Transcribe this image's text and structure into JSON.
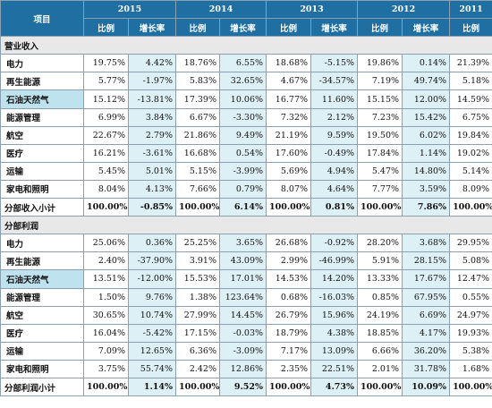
{
  "header": {
    "corner": "项目",
    "years": [
      "2015",
      "2014",
      "2013",
      "2012",
      "2011"
    ],
    "ratio_label": "比例",
    "growth_label": "增长率"
  },
  "sections": [
    {
      "title": "营业收入",
      "rows": [
        {
          "label": "电力",
          "highlight": false,
          "values": [
            "19.75%",
            "4.42%",
            "18.76%",
            "6.55%",
            "18.68%",
            "-5.15%",
            "19.86%",
            "0.14%",
            "21.39%"
          ]
        },
        {
          "label": "再生能源",
          "highlight": false,
          "values": [
            "5.77%",
            "-1.97%",
            "5.83%",
            "32.65%",
            "4.67%",
            "-34.57%",
            "7.19%",
            "49.74%",
            "5.18%"
          ]
        },
        {
          "label": "石油天然气",
          "highlight": true,
          "values": [
            "15.12%",
            "-13.81%",
            "17.39%",
            "10.06%",
            "16.77%",
            "11.60%",
            "15.15%",
            "12.00%",
            "14.59%"
          ]
        },
        {
          "label": "能源管理",
          "highlight": false,
          "values": [
            "6.99%",
            "3.84%",
            "6.67%",
            "-3.30%",
            "7.32%",
            "2.12%",
            "7.23%",
            "15.42%",
            "6.75%"
          ]
        },
        {
          "label": "航空",
          "highlight": false,
          "values": [
            "22.67%",
            "2.79%",
            "21.86%",
            "9.49%",
            "21.19%",
            "9.59%",
            "19.50%",
            "6.02%",
            "19.84%"
          ]
        },
        {
          "label": "医疗",
          "highlight": false,
          "values": [
            "16.21%",
            "-3.61%",
            "16.68%",
            "0.54%",
            "17.60%",
            "-0.49%",
            "17.84%",
            "1.14%",
            "19.02%"
          ]
        },
        {
          "label": "运输",
          "highlight": false,
          "values": [
            "5.45%",
            "5.01%",
            "5.15%",
            "-3.99%",
            "5.69%",
            "4.94%",
            "5.47%",
            "14.80%",
            "5.14%"
          ]
        },
        {
          "label": "家电和照明",
          "highlight": false,
          "values": [
            "8.04%",
            "4.13%",
            "7.66%",
            "0.79%",
            "8.07%",
            "4.64%",
            "7.77%",
            "3.59%",
            "8.09%"
          ]
        }
      ],
      "subtotal": {
        "label": "分部收入小计",
        "values": [
          "100.00%",
          "-0.85%",
          "100.00%",
          "6.14%",
          "100.00%",
          "0.81%",
          "100.00%",
          "7.86%",
          "100.00%"
        ]
      }
    },
    {
      "title": "分部利润",
      "rows": [
        {
          "label": "电力",
          "highlight": false,
          "values": [
            "25.06%",
            "0.36%",
            "25.25%",
            "3.65%",
            "26.68%",
            "-0.92%",
            "28.20%",
            "3.68%",
            "29.95%"
          ]
        },
        {
          "label": "再生能源",
          "highlight": false,
          "values": [
            "2.40%",
            "-37.90%",
            "3.91%",
            "43.09%",
            "2.99%",
            "-46.99%",
            "5.91%",
            "28.15%",
            "5.08%"
          ]
        },
        {
          "label": "石油天然气",
          "highlight": true,
          "values": [
            "13.51%",
            "-12.00%",
            "15.53%",
            "17.01%",
            "14.53%",
            "14.20%",
            "13.33%",
            "17.67%",
            "12.47%"
          ]
        },
        {
          "label": "能源管理",
          "highlight": false,
          "values": [
            "1.50%",
            "9.76%",
            "1.38%",
            "123.64%",
            "0.68%",
            "-16.03%",
            "0.85%",
            "67.95%",
            "0.55%"
          ]
        },
        {
          "label": "航空",
          "highlight": false,
          "values": [
            "30.65%",
            "10.74%",
            "27.99%",
            "14.45%",
            "26.79%",
            "15.96%",
            "24.19%",
            "6.69%",
            "24.97%"
          ]
        },
        {
          "label": "医疗",
          "highlight": false,
          "values": [
            "16.04%",
            "-5.42%",
            "17.15%",
            "-0.03%",
            "18.79%",
            "4.38%",
            "18.85%",
            "4.17%",
            "19.93%"
          ]
        },
        {
          "label": "运输",
          "highlight": false,
          "values": [
            "7.09%",
            "12.65%",
            "6.36%",
            "-3.09%",
            "7.17%",
            "13.09%",
            "6.66%",
            "36.20%",
            "5.38%"
          ]
        },
        {
          "label": "家电和照明",
          "highlight": false,
          "values": [
            "3.75%",
            "55.74%",
            "2.42%",
            "12.86%",
            "2.35%",
            "22.51%",
            "2.01%",
            "31.78%",
            "1.68%"
          ]
        }
      ],
      "subtotal": {
        "label": "分部利润小计",
        "values": [
          "100.00%",
          "1.14%",
          "100.00%",
          "9.52%",
          "100.00%",
          "4.73%",
          "100.00%",
          "10.09%",
          "100.00%"
        ]
      }
    }
  ]
}
